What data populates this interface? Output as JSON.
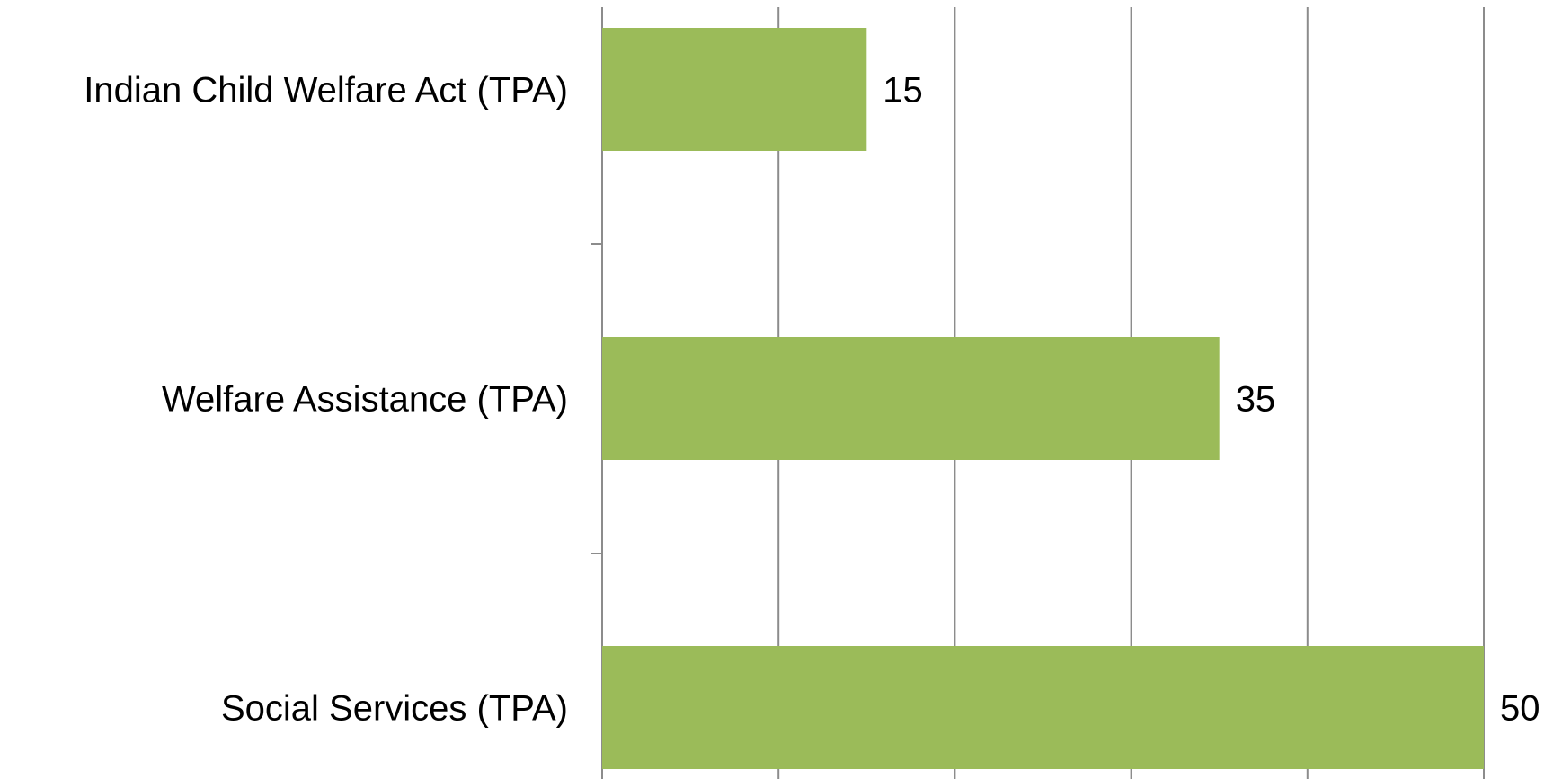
{
  "chart_data": {
    "type": "barh",
    "categories": [
      "Indian Child Welfare Act (TPA)",
      "Welfare Assistance (TPA)",
      "Social Services (TPA)"
    ],
    "values": [
      15,
      35,
      50
    ],
    "color": "#9bbb59",
    "xlim": [
      0,
      50
    ],
    "xticks": [
      0,
      10,
      20,
      30,
      40,
      50
    ],
    "grid": true
  }
}
